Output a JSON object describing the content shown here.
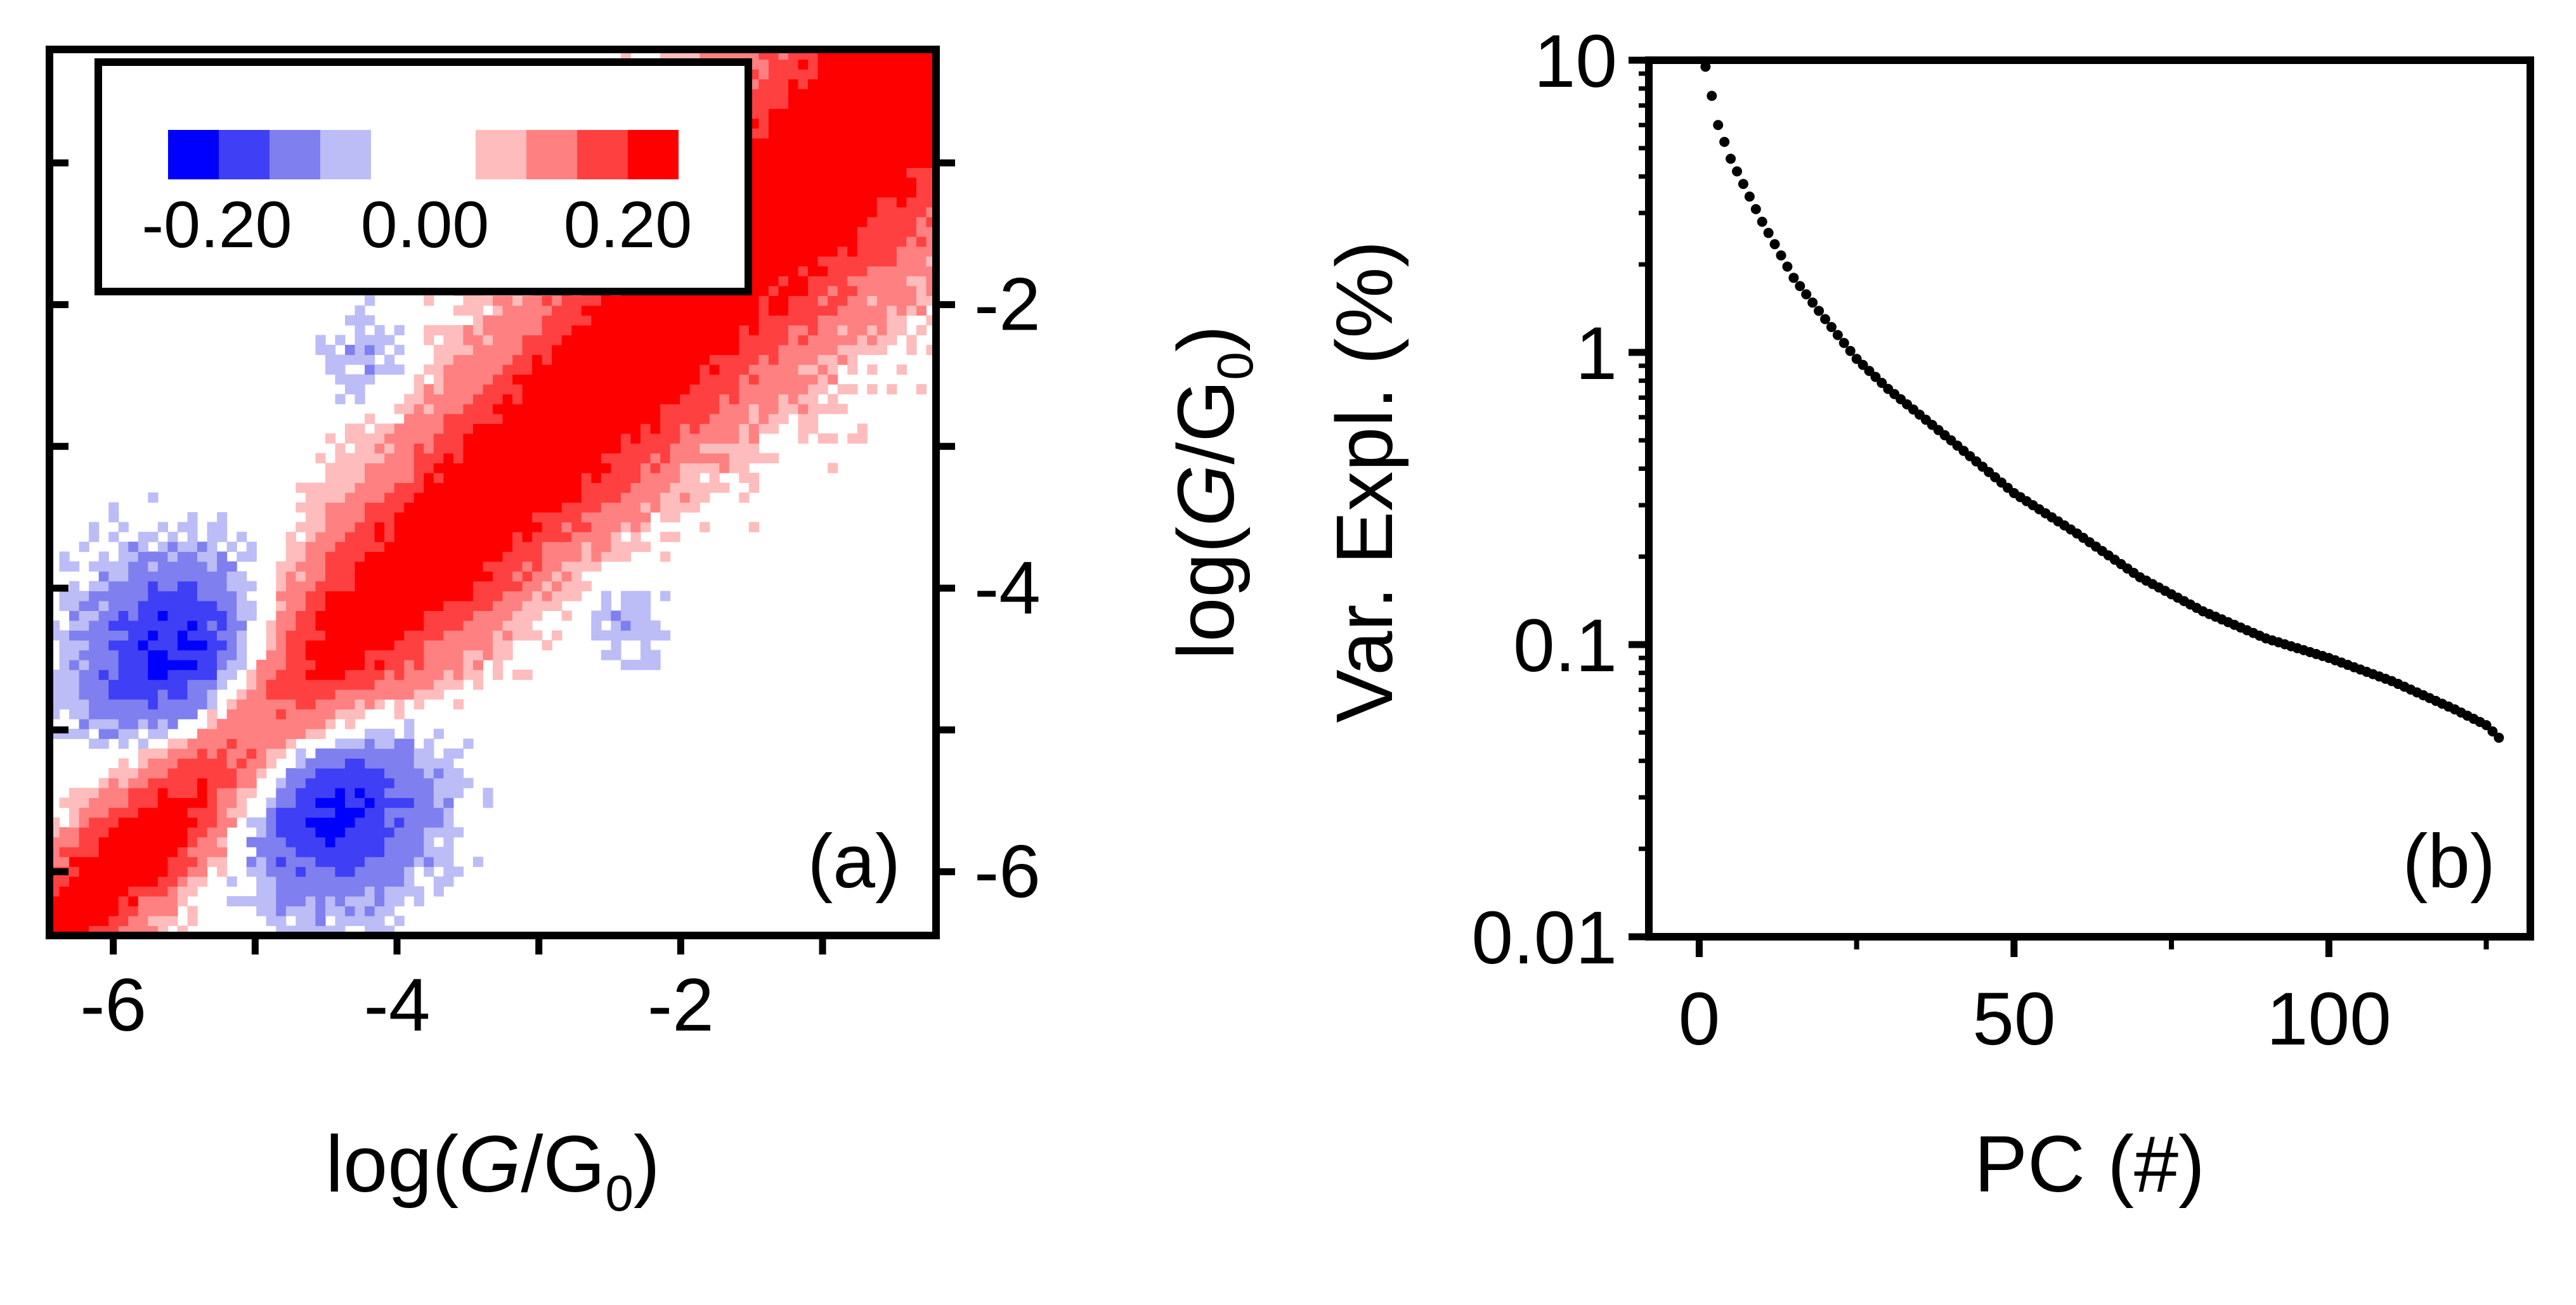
{
  "chart_data": [
    {
      "panel": "(a)",
      "type": "heatmap",
      "title": "",
      "xlabel": {
        "prefix": "log(",
        "italic": "G",
        "mid": "/G",
        "sub": "0",
        "suffix": ")"
      },
      "ylabel": {
        "prefix": "log(",
        "italic": "G",
        "mid": "/G",
        "sub": "0",
        "suffix": ")"
      },
      "xlim": [
        -6.45,
        -0.2
      ],
      "ylim": [
        -6.45,
        -0.2
      ],
      "x_ticks": [
        -6,
        -5,
        -4,
        -3,
        -2,
        -1
      ],
      "x_tick_labels": [
        {
          "value": -6,
          "text": "-6"
        },
        {
          "value": -4,
          "text": "-4"
        },
        {
          "value": -2,
          "text": "-2"
        }
      ],
      "y_axis_side": "right",
      "y_ticks": [
        -6,
        -5,
        -4,
        -3,
        -2,
        -1
      ],
      "y_tick_labels": [
        {
          "value": -6,
          "text": "-6"
        },
        {
          "value": -4,
          "text": "-4"
        },
        {
          "value": -2,
          "text": "-2"
        }
      ],
      "color_scale": {
        "min": -0.25,
        "max": 0.25,
        "levels": [
          {
            "from": -0.25,
            "to": -0.1875,
            "color": "#0000ff"
          },
          {
            "from": -0.1875,
            "to": -0.125,
            "color": "#3f3ff5"
          },
          {
            "from": -0.125,
            "to": -0.0625,
            "color": "#7f7fef"
          },
          {
            "from": -0.0625,
            "to": -0.03,
            "color": "#bcbcf7"
          },
          {
            "from": -0.03,
            "to": 0.03,
            "color": "#ffffff"
          },
          {
            "from": 0.03,
            "to": 0.0625,
            "color": "#ffbcbc"
          },
          {
            "from": 0.0625,
            "to": 0.125,
            "color": "#ff8080"
          },
          {
            "from": 0.125,
            "to": 0.1875,
            "color": "#ff4040"
          },
          {
            "from": 0.1875,
            "to": 0.25,
            "color": "#ff0000"
          }
        ]
      },
      "legend": {
        "placement": "top-left",
        "labels": [
          "-0.20",
          "0.00",
          "0.20"
        ],
        "swatch_colors": [
          "#0000ff",
          "#3f3ff5",
          "#7f7fef",
          "#bcbcf7",
          "#ffffff",
          "#ffbcbc",
          "#ff8080",
          "#ff4040",
          "#ff0000"
        ]
      },
      "features": [
        {
          "name": "diagonal-ridge",
          "kind": "diagonal",
          "peak": 0.25,
          "from": -6.45,
          "to": -0.2
        },
        {
          "name": "anticorrelation-upper-left",
          "kind": "blob",
          "x": -5.5,
          "y": -4.5,
          "peak": -0.22
        },
        {
          "name": "anticorrelation-lower-right",
          "kind": "blob",
          "x": -4.5,
          "y": -5.5,
          "peak": -0.22
        },
        {
          "name": "weak-negative-patch-1",
          "kind": "blob",
          "x": -4.2,
          "y": -2.4,
          "peak": -0.06
        },
        {
          "name": "weak-negative-patch-2",
          "kind": "blob",
          "x": -2.4,
          "y": -4.2,
          "peak": -0.06
        }
      ]
    },
    {
      "panel": "(b)",
      "type": "scatter",
      "title": "",
      "xlabel": "PC (#)",
      "ylabel": "Var. Expl. (%)",
      "xlim": [
        -8,
        132
      ],
      "ylim": [
        0.01,
        10
      ],
      "y_scale": "log",
      "x_tick_labels": [
        "0",
        "50",
        "100"
      ],
      "x_tick_values": [
        0,
        50,
        100
      ],
      "y_tick_labels": [
        "0.01",
        "0.1",
        "1",
        "10"
      ],
      "y_tick_values": [
        0.01,
        0.1,
        1,
        10
      ],
      "x_minor_step": 25,
      "series": [
        {
          "name": "variance explained",
          "marker": "dot",
          "color": "#000000",
          "x": [
            1,
            3,
            5,
            10,
            15,
            20,
            25,
            30,
            40,
            50,
            60,
            70,
            80,
            90,
            100,
            110,
            120,
            125,
            127
          ],
          "y": [
            9.5,
            6.0,
            4.6,
            2.8,
            1.8,
            1.3,
            0.95,
            0.75,
            0.5,
            0.33,
            0.24,
            0.17,
            0.13,
            0.105,
            0.09,
            0.075,
            0.06,
            0.053,
            0.048
          ]
        }
      ]
    }
  ]
}
